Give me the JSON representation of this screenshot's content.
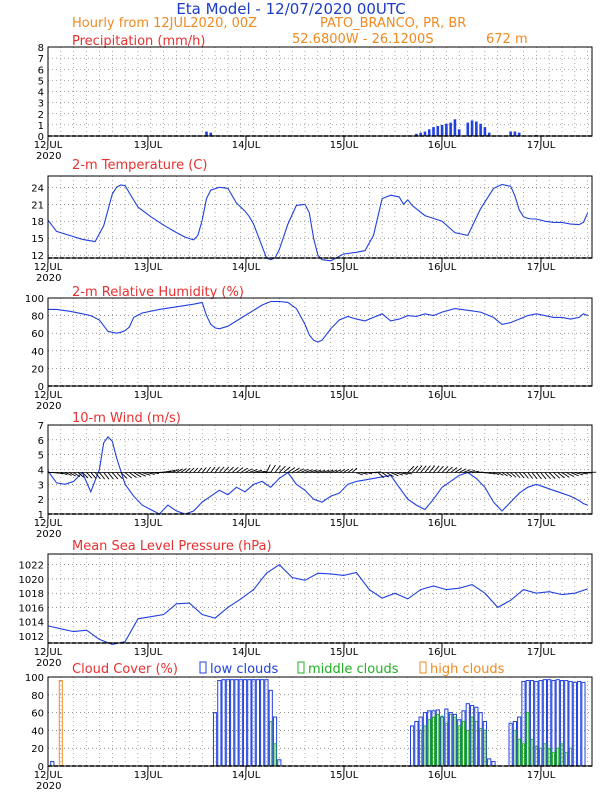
{
  "header": {
    "title": "Eta Model - 12/07/2020 00UTC",
    "subtitle": "Hourly from 12JUL2020, 00Z",
    "location": "PATO_BRANCO, PR, BR",
    "coords": "52.6800W - 26.1200S",
    "elevation": "672  m",
    "title_color": "#1a3cc8",
    "subtitle_color": "#f08a20"
  },
  "axis": {
    "days": [
      "12JUL",
      "13JUL",
      "14JUL",
      "15JUL",
      "16JUL",
      "17JUL"
    ],
    "year": "2020"
  },
  "colors": {
    "line": "#2040e0",
    "title": "#e83030",
    "grid": "#555555",
    "mid": "#20b020",
    "high": "#f08a20"
  },
  "chart_data": [
    {
      "type": "bar",
      "title": "Precipitation (mm/h)",
      "ylim": [
        0,
        8
      ],
      "yticks": [
        "0",
        "1",
        "2",
        "3",
        "4",
        "5",
        "6",
        "7",
        "8"
      ],
      "x_hours": [
        37,
        38,
        86,
        87,
        88,
        89,
        90,
        91,
        92,
        93,
        94,
        95,
        96,
        98,
        99,
        100,
        101,
        102,
        103,
        108,
        109,
        110,
        114
      ],
      "values": [
        0.4,
        0.3,
        0.2,
        0.3,
        0.4,
        0.6,
        0.8,
        0.9,
        1.0,
        1.1,
        1.2,
        1.5,
        0.6,
        1.2,
        1.4,
        1.3,
        1.1,
        0.8,
        0.3,
        0.4,
        0.4,
        0.3,
        0.1
      ]
    },
    {
      "type": "line",
      "title": "2-m Temperature (C)",
      "ylim": [
        11.5,
        26
      ],
      "yticks": [
        "12",
        "15",
        "18",
        "21",
        "24"
      ],
      "x_hours": [
        0,
        2,
        5,
        8,
        11,
        13,
        15,
        16,
        17,
        18,
        19,
        21,
        24,
        27,
        30,
        32,
        34,
        35,
        36,
        37,
        38,
        40,
        42,
        44,
        46,
        47,
        48,
        50,
        51,
        52,
        53,
        54,
        56,
        58,
        60,
        61,
        62,
        63,
        64,
        66,
        69,
        72,
        74,
        76,
        78,
        80,
        82,
        83,
        84,
        85,
        86,
        88,
        90,
        92,
        95,
        98,
        101,
        104,
        106,
        108,
        109,
        110,
        111,
        112,
        113,
        114,
        116,
        118,
        120,
        122,
        124,
        125,
        126
      ],
      "values": [
        18.2,
        16.2,
        15.5,
        14.8,
        14.4,
        17.2,
        22.8,
        24.0,
        24.4,
        24.3,
        23.0,
        20.5,
        18.8,
        17.3,
        16.0,
        15.2,
        14.7,
        15.5,
        18.2,
        22.0,
        23.5,
        24.0,
        23.8,
        21.2,
        19.8,
        18.8,
        17.5,
        13.5,
        11.5,
        11.2,
        11.5,
        13.0,
        17.5,
        20.8,
        21.0,
        19.5,
        15.0,
        12.0,
        11.2,
        11.0,
        12.2,
        12.5,
        12.8,
        15.5,
        22.0,
        22.6,
        22.3,
        21.0,
        21.8,
        20.8,
        20.2,
        19.0,
        18.5,
        18.0,
        16.0,
        15.5,
        20.2,
        23.8,
        24.5,
        24.2,
        22.5,
        20.0,
        18.8,
        18.5,
        18.4,
        18.4,
        18.0,
        17.8,
        17.8,
        17.5,
        17.4,
        17.8,
        19.5
      ]
    },
    {
      "type": "line",
      "title": "2-m Relative Humidity (%)",
      "ylim": [
        0,
        100
      ],
      "yticks": [
        "0",
        "20",
        "40",
        "60",
        "80",
        "100"
      ],
      "x_hours": [
        0,
        2,
        5,
        8,
        10,
        12,
        14,
        16,
        17,
        18,
        19,
        20,
        22,
        26,
        30,
        34,
        36,
        37,
        38,
        39,
        40,
        42,
        44,
        46,
        48,
        50,
        52,
        54,
        56,
        58,
        60,
        61,
        62,
        63,
        64,
        66,
        68,
        70,
        72,
        74,
        76,
        78,
        80,
        82,
        84,
        86,
        88,
        90,
        92,
        95,
        98,
        101,
        104,
        106,
        108,
        110,
        112,
        114,
        116,
        118,
        120,
        122,
        124,
        125,
        126
      ],
      "values": [
        87,
        87,
        85,
        82,
        80,
        75,
        62,
        60,
        61,
        63,
        67,
        78,
        83,
        87,
        90,
        93,
        95,
        80,
        70,
        66,
        65,
        68,
        74,
        80,
        86,
        92,
        96,
        96,
        95,
        88,
        70,
        58,
        52,
        50,
        52,
        65,
        75,
        79,
        76,
        74,
        78,
        82,
        74,
        76,
        80,
        79,
        82,
        80,
        84,
        88,
        86,
        84,
        78,
        70,
        72,
        76,
        80,
        82,
        80,
        78,
        78,
        76,
        78,
        82,
        80
      ]
    },
    {
      "type": "line",
      "title": "10-m Wind (m/s)",
      "ylim": [
        1,
        7
      ],
      "yticks": [
        "1",
        "2",
        "3",
        "4",
        "5",
        "6",
        "7"
      ],
      "barbs": "wind direction arrows along reference line",
      "x_hours": [
        0,
        2,
        4,
        6,
        8,
        10,
        12,
        13,
        14,
        15,
        16,
        18,
        20,
        22,
        24,
        26,
        28,
        30,
        32,
        34,
        36,
        38,
        40,
        42,
        44,
        46,
        48,
        50,
        52,
        54,
        56,
        58,
        60,
        62,
        64,
        66,
        68,
        70,
        72,
        74,
        76,
        78,
        80,
        82,
        84,
        86,
        88,
        90,
        92,
        94,
        96,
        98,
        100,
        102,
        104,
        106,
        108,
        110,
        112,
        114,
        116,
        118,
        120,
        122,
        124,
        125,
        126
      ],
      "values": [
        3.9,
        3.1,
        3.0,
        3.2,
        3.8,
        2.5,
        4.0,
        5.8,
        6.2,
        5.9,
        4.8,
        3.0,
        2.2,
        1.6,
        1.3,
        1.0,
        1.6,
        1.2,
        1.0,
        1.2,
        1.8,
        2.2,
        2.6,
        2.3,
        2.8,
        2.5,
        3.0,
        3.2,
        2.8,
        3.4,
        3.8,
        3.0,
        2.6,
        2.0,
        1.8,
        2.2,
        2.4,
        3.0,
        3.2,
        3.3,
        3.4,
        3.5,
        3.6,
        2.8,
        2.0,
        1.6,
        1.3,
        2.0,
        2.8,
        3.2,
        3.6,
        3.8,
        3.4,
        2.8,
        1.8,
        1.2,
        1.8,
        2.4,
        2.8,
        3.0,
        2.8,
        2.6,
        2.4,
        2.2,
        1.9,
        1.7,
        1.6
      ]
    },
    {
      "type": "line",
      "title": "Mean Sea Level Pressure (hPa)",
      "ylim": [
        1011,
        1023.5
      ],
      "yticks": [
        "1012",
        "1014",
        "1016",
        "1018",
        "1020",
        "1022"
      ],
      "x_hours": [
        0,
        3,
        6,
        9,
        12,
        15,
        18,
        21,
        24,
        27,
        30,
        33,
        36,
        39,
        42,
        45,
        48,
        51,
        54,
        57,
        60,
        63,
        66,
        69,
        72,
        75,
        78,
        81,
        84,
        87,
        90,
        93,
        96,
        99,
        102,
        105,
        108,
        111,
        114,
        117,
        120,
        123,
        126
      ],
      "values": [
        1013.4,
        1013.0,
        1012.6,
        1012.8,
        1011.5,
        1010.8,
        1011.2,
        1014.4,
        1014.7,
        1015.0,
        1016.5,
        1016.6,
        1015.0,
        1014.5,
        1016.0,
        1017.2,
        1018.5,
        1020.8,
        1022.0,
        1020.2,
        1019.8,
        1020.8,
        1020.7,
        1020.5,
        1020.9,
        1018.5,
        1017.3,
        1018.0,
        1017.2,
        1018.5,
        1019.0,
        1018.5,
        1018.7,
        1019.2,
        1018.0,
        1016.0,
        1017.0,
        1018.5,
        1018.0,
        1018.2,
        1017.8,
        1018.0,
        1018.6
      ]
    },
    {
      "type": "bar",
      "title": "Cloud Cover (%)",
      "ylim": [
        0,
        100
      ],
      "yticks": [
        "0",
        "20",
        "40",
        "60",
        "80",
        "100"
      ],
      "legend": {
        "low": "low clouds",
        "mid": "middle clouds",
        "high": "high clouds"
      },
      "high_x_hours": [
        1
      ],
      "high_values": [
        96
      ],
      "low_x_hours": [
        1,
        39,
        40,
        41,
        42,
        43,
        44,
        45,
        46,
        47,
        48,
        49,
        50,
        51,
        52,
        53,
        54,
        85,
        86,
        87,
        88,
        89,
        90,
        91,
        92,
        93,
        94,
        95,
        96,
        97,
        98,
        99,
        100,
        101,
        102,
        103,
        104,
        108,
        109,
        110,
        111,
        112,
        113,
        114,
        115,
        116,
        117,
        118,
        119,
        120,
        121,
        122,
        123,
        124,
        125
      ],
      "low_values": [
        5,
        60,
        96,
        97,
        97,
        97,
        97,
        97,
        97,
        97,
        97,
        97,
        97,
        97,
        85,
        55,
        7,
        45,
        50,
        55,
        60,
        62,
        62,
        63,
        55,
        64,
        60,
        58,
        52,
        62,
        70,
        68,
        66,
        60,
        50,
        8,
        5,
        48,
        50,
        55,
        95,
        96,
        96,
        95,
        96,
        97,
        97,
        96,
        97,
        96,
        96,
        95,
        94,
        95,
        94
      ],
      "mid_x_hours": [
        52,
        53,
        87,
        88,
        89,
        90,
        91,
        92,
        93,
        94,
        95,
        96,
        97,
        98,
        99,
        100,
        101,
        102,
        109,
        110,
        111,
        112,
        113,
        114,
        115,
        116,
        117,
        118,
        119,
        120,
        121,
        122
      ],
      "mid_values": [
        50,
        25,
        40,
        45,
        52,
        55,
        58,
        56,
        48,
        58,
        55,
        45,
        50,
        40,
        55,
        50,
        42,
        40,
        40,
        30,
        25,
        60,
        30,
        22,
        20,
        25,
        20,
        15,
        20,
        25,
        15,
        20
      ]
    }
  ]
}
